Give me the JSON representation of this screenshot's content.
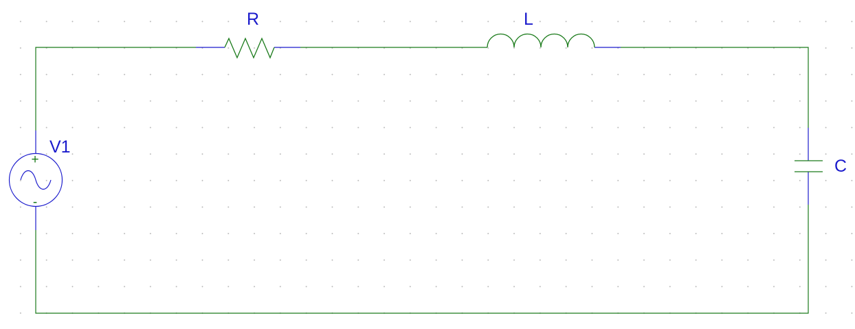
{
  "colors": {
    "wire": "#1a7a1a",
    "component": "#1a7a1a",
    "lead": "#1a1acc",
    "label": "#1a1acc",
    "grid": "#b8b8b8",
    "background": "#ffffff"
  },
  "components": {
    "resistor": {
      "label": "R",
      "icon": "resistor-symbol"
    },
    "inductor": {
      "label": "L",
      "icon": "inductor-symbol"
    },
    "capacitor": {
      "label": "C",
      "icon": "capacitor-symbol"
    },
    "source": {
      "label": "V1",
      "icon": "ac-voltage-source-symbol",
      "plus": "+",
      "minus": "-"
    }
  }
}
